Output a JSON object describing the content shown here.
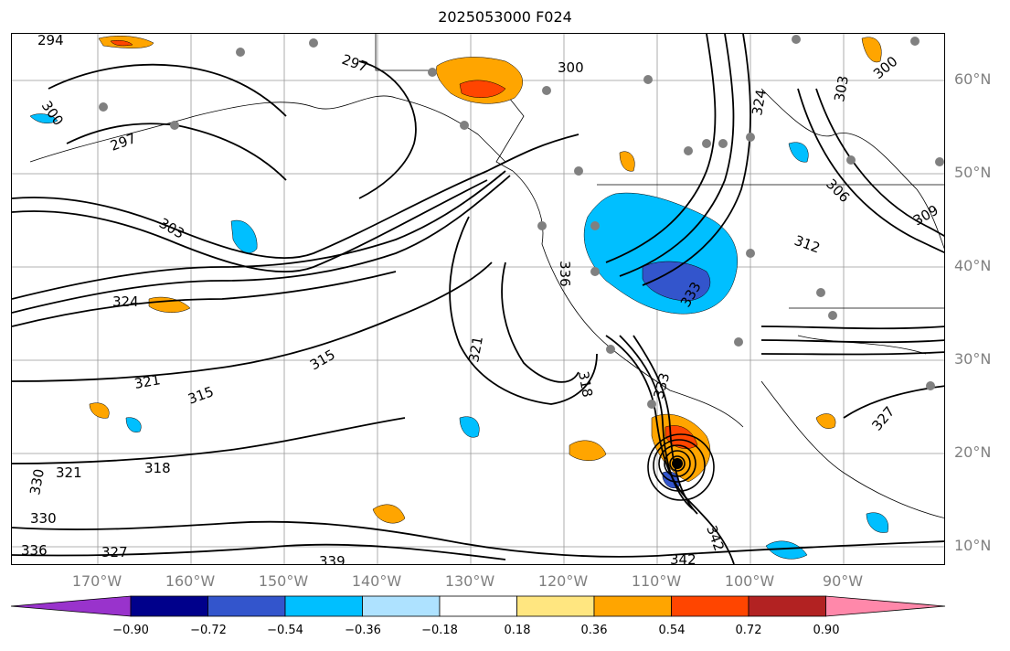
{
  "title": "2025053000 F024",
  "lon_labels": [
    "170°W",
    "160°W",
    "150°W",
    "140°W",
    "130°W",
    "120°W",
    "110°W",
    "100°W",
    "90°W"
  ],
  "lat_labels": [
    "60°N",
    "50°N",
    "40°N",
    "30°N",
    "20°N",
    "10°N"
  ],
  "contour_labels": [
    "294",
    "297",
    "300",
    "300",
    "297",
    "303",
    "300",
    "303",
    "306",
    "309",
    "312",
    "315",
    "318",
    "321",
    "324",
    "327",
    "330",
    "333",
    "336",
    "339",
    "342",
    "324",
    "321",
    "315",
    "318",
    "321",
    "327",
    "330",
    "333",
    "336",
    "342"
  ],
  "colorbar": {
    "ticks": [
      "−0.90",
      "−0.72",
      "−0.54",
      "−0.36",
      "−0.18",
      "0.18",
      "0.36",
      "0.54",
      "0.72",
      "0.90"
    ],
    "colors": [
      "#9933cc",
      "#00008b",
      "#3355cc",
      "#00bfff",
      "#aee2ff",
      "#ffffff",
      "#ffe680",
      "#ffa500",
      "#ff4500",
      "#b22222",
      "#ff88aa"
    ]
  },
  "shading_colors": {
    "negative_light": "#00bfff",
    "negative_dark": "#3355cc",
    "positive_light": "#ffa500",
    "positive_dark": "#ff4500"
  }
}
